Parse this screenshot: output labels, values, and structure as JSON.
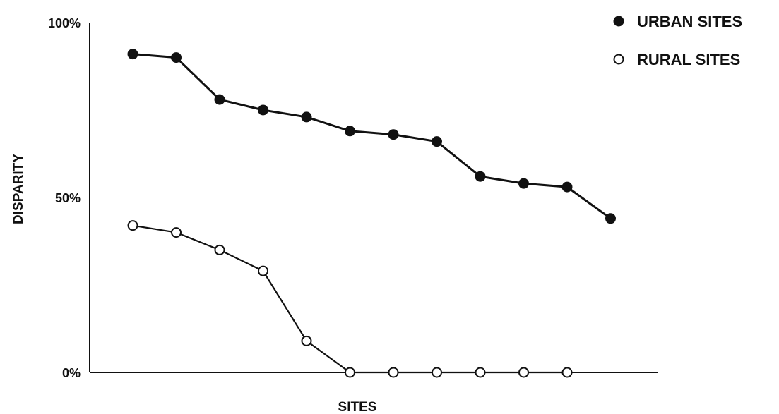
{
  "chart_data": {
    "type": "line",
    "title": "",
    "xlabel": "SITES",
    "ylabel": "DISPARITY",
    "y_tick_labels": [
      "0%",
      "50%",
      "100%"
    ],
    "y_ticks": [
      0,
      50,
      100
    ],
    "ylim": [
      0,
      100
    ],
    "x": [
      1,
      2,
      3,
      4,
      5,
      6,
      7,
      8,
      9,
      10,
      11,
      12
    ],
    "xlim": [
      0,
      13.5
    ],
    "grid": false,
    "legend_position": "top-right",
    "series": [
      {
        "name": "URBAN SITES",
        "marker": "filled-circle",
        "x": [
          1,
          2,
          3,
          4,
          5,
          6,
          7,
          8,
          9,
          10,
          11,
          12
        ],
        "values": [
          91,
          90,
          78,
          75,
          73,
          69,
          68,
          66,
          56,
          54,
          53,
          44
        ]
      },
      {
        "name": "RURAL SITES",
        "marker": "open-circle",
        "x": [
          1,
          2,
          3,
          4,
          5,
          6,
          7,
          8,
          9,
          10,
          11
        ],
        "values": [
          42,
          40,
          35,
          29,
          9,
          0,
          0,
          0,
          0,
          0,
          0
        ]
      }
    ]
  }
}
